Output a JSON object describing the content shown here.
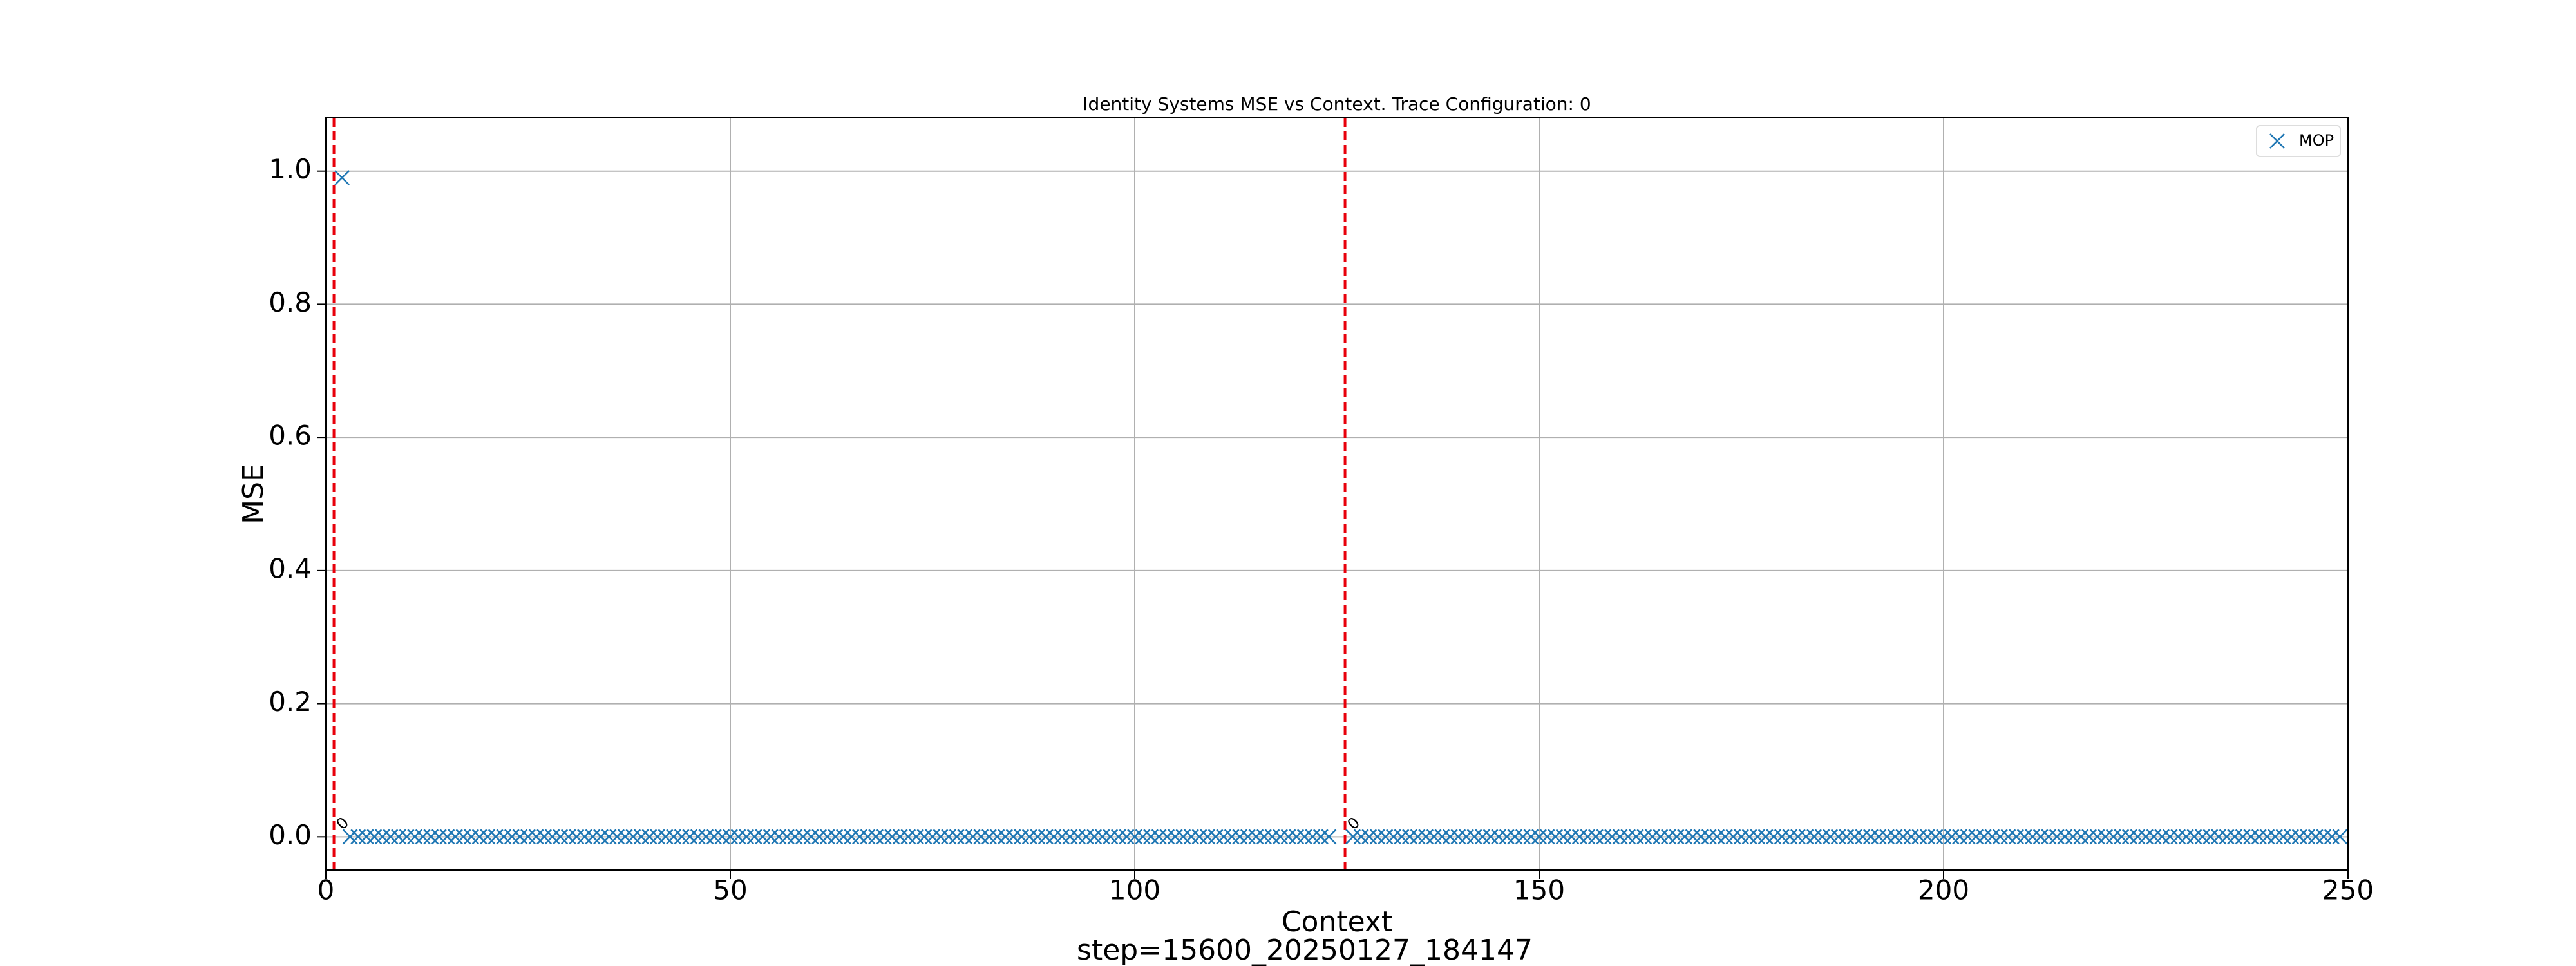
{
  "chart_data": {
    "type": "scatter",
    "title": "Identity Systems MSE vs Context. Trace Configuration: 0",
    "xlabel": "Context",
    "ylabel": "MSE",
    "footer": "step=15600_20250127_184147",
    "xlim": [
      0,
      250
    ],
    "xticks": [
      0,
      50,
      100,
      150,
      200,
      250
    ],
    "ylim": [
      -0.05,
      1.08
    ],
    "yticks": [
      {
        "value": 0,
        "label": "0.0"
      },
      0.2,
      0.4,
      0.6,
      0.8,
      {
        "value": 1,
        "label": "1.0"
      }
    ],
    "grid": true,
    "legend": "upper-right",
    "vlines": [
      1,
      126
    ],
    "vline_color": "#e8000b",
    "vline_labels": [
      "0",
      "0"
    ],
    "series": [
      {
        "name": "MOP",
        "color": "#1f77b4",
        "x": [
          2,
          3,
          4,
          5,
          6,
          7,
          8,
          9,
          10,
          11,
          12,
          13,
          14,
          15,
          16,
          17,
          18,
          19,
          20,
          21,
          22,
          23,
          24,
          25,
          26,
          27,
          28,
          29,
          30,
          31,
          32,
          33,
          34,
          35,
          36,
          37,
          38,
          39,
          40,
          41,
          42,
          43,
          44,
          45,
          46,
          47,
          48,
          49,
          50,
          51,
          52,
          53,
          54,
          55,
          56,
          57,
          58,
          59,
          60,
          61,
          62,
          63,
          64,
          65,
          66,
          67,
          68,
          69,
          70,
          71,
          72,
          73,
          74,
          75,
          76,
          77,
          78,
          79,
          80,
          81,
          82,
          83,
          84,
          85,
          86,
          87,
          88,
          89,
          90,
          91,
          92,
          93,
          94,
          95,
          96,
          97,
          98,
          99,
          100,
          101,
          102,
          103,
          104,
          105,
          106,
          107,
          108,
          109,
          110,
          111,
          112,
          113,
          114,
          115,
          116,
          117,
          118,
          119,
          120,
          121,
          122,
          123,
          124,
          127,
          128,
          129,
          130,
          131,
          132,
          133,
          134,
          135,
          136,
          137,
          138,
          139,
          140,
          141,
          142,
          143,
          144,
          145,
          146,
          147,
          148,
          149,
          150,
          151,
          152,
          153,
          154,
          155,
          156,
          157,
          158,
          159,
          160,
          161,
          162,
          163,
          164,
          165,
          166,
          167,
          168,
          169,
          170,
          171,
          172,
          173,
          174,
          175,
          176,
          177,
          178,
          179,
          180,
          181,
          182,
          183,
          184,
          185,
          186,
          187,
          188,
          189,
          190,
          191,
          192,
          193,
          194,
          195,
          196,
          197,
          198,
          199,
          200,
          201,
          202,
          203,
          204,
          205,
          206,
          207,
          208,
          209,
          210,
          211,
          212,
          213,
          214,
          215,
          216,
          217,
          218,
          219,
          220,
          221,
          222,
          223,
          224,
          225,
          226,
          227,
          228,
          229,
          230,
          231,
          232,
          233,
          234,
          235,
          236,
          237,
          238,
          239,
          240,
          241,
          242,
          243,
          244,
          245,
          246,
          247,
          248,
          249
        ],
        "values": [
          0.99,
          0,
          0,
          0,
          0,
          0,
          0,
          0,
          0,
          0,
          0,
          0,
          0,
          0,
          0,
          0,
          0,
          0,
          0,
          0,
          0,
          0,
          0,
          0,
          0,
          0,
          0,
          0,
          0,
          0,
          0,
          0,
          0,
          0,
          0,
          0,
          0,
          0,
          0,
          0,
          0,
          0,
          0,
          0,
          0,
          0,
          0,
          0,
          0,
          0,
          0,
          0,
          0,
          0,
          0,
          0,
          0,
          0,
          0,
          0,
          0,
          0,
          0,
          0,
          0,
          0,
          0,
          0,
          0,
          0,
          0,
          0,
          0,
          0,
          0,
          0,
          0,
          0,
          0,
          0,
          0,
          0,
          0,
          0,
          0,
          0,
          0,
          0,
          0,
          0,
          0,
          0,
          0,
          0,
          0,
          0,
          0,
          0,
          0,
          0,
          0,
          0,
          0,
          0,
          0,
          0,
          0,
          0,
          0,
          0,
          0,
          0,
          0,
          0,
          0,
          0,
          0,
          0,
          0,
          0,
          0,
          0,
          0,
          0,
          0,
          0,
          0,
          0,
          0,
          0,
          0,
          0,
          0,
          0,
          0,
          0,
          0,
          0,
          0,
          0,
          0,
          0,
          0,
          0,
          0,
          0,
          0,
          0,
          0,
          0,
          0,
          0,
          0,
          0,
          0,
          0,
          0,
          0,
          0,
          0,
          0,
          0,
          0,
          0,
          0,
          0,
          0,
          0,
          0,
          0,
          0,
          0,
          0,
          0,
          0,
          0,
          0,
          0,
          0,
          0,
          0,
          0,
          0,
          0,
          0,
          0,
          0,
          0,
          0,
          0,
          0,
          0,
          0,
          0,
          0,
          0,
          0,
          0,
          0,
          0,
          0,
          0,
          0,
          0,
          0,
          0,
          0,
          0,
          0,
          0,
          0,
          0,
          0,
          0,
          0,
          0,
          0,
          0,
          0,
          0,
          0,
          0,
          0,
          0,
          0,
          0,
          0,
          0,
          0,
          0,
          0,
          0,
          0,
          0,
          0,
          0,
          0,
          0,
          0,
          0,
          0,
          0,
          0,
          0,
          0,
          0
        ]
      }
    ]
  }
}
